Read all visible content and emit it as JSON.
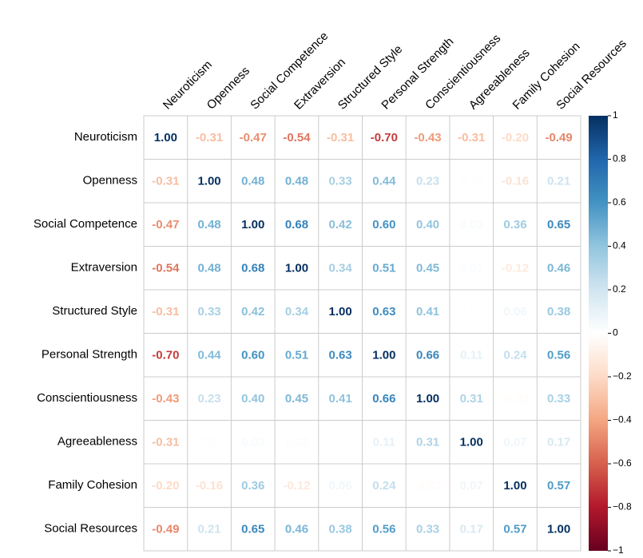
{
  "chart_data": {
    "type": "heatmap",
    "rows": [
      "Neuroticism",
      "Openness",
      "Social Competence",
      "Extraversion",
      "Structured Style",
      "Personal Strength",
      "Conscientiousness",
      "Agreeableness",
      "Family Cohesion",
      "Social Resources"
    ],
    "columns": [
      "Neuroticism",
      "Openness",
      "Social Competence",
      "Extraversion",
      "Structured Style",
      "Personal Strength",
      "Conscientiousness",
      "Agreeableness",
      "Family Cohesion",
      "Social Resources"
    ],
    "values": [
      [
        1.0,
        -0.31,
        -0.47,
        -0.54,
        -0.31,
        -0.7,
        -0.43,
        -0.31,
        -0.2,
        -0.49
      ],
      [
        -0.31,
        1.0,
        0.48,
        0.48,
        0.33,
        0.44,
        0.23,
        -0.01,
        -0.16,
        0.21
      ],
      [
        -0.47,
        0.48,
        1.0,
        0.68,
        0.42,
        0.6,
        0.4,
        0.03,
        0.36,
        0.65
      ],
      [
        -0.54,
        0.48,
        0.68,
        1.0,
        0.34,
        0.51,
        0.45,
        0.02,
        -0.12,
        0.46
      ],
      [
        -0.31,
        0.33,
        0.42,
        0.34,
        1.0,
        0.63,
        0.41,
        0.01,
        0.06,
        0.38
      ],
      [
        -0.7,
        0.44,
        0.6,
        0.51,
        0.63,
        1.0,
        0.66,
        0.11,
        0.24,
        0.56
      ],
      [
        -0.43,
        0.23,
        0.4,
        0.45,
        0.41,
        0.66,
        1.0,
        0.31,
        -0.02,
        0.33
      ],
      [
        -0.31,
        -0.01,
        0.03,
        0.02,
        0.01,
        0.11,
        0.31,
        1.0,
        0.07,
        0.17
      ],
      [
        -0.2,
        -0.16,
        0.36,
        -0.12,
        0.06,
        0.24,
        -0.02,
        0.07,
        1.0,
        0.57
      ],
      [
        -0.49,
        0.21,
        0.65,
        0.46,
        0.38,
        0.56,
        0.33,
        0.17,
        0.57,
        1.0
      ]
    ],
    "value_labels": [
      [
        "1.00",
        "-0.31",
        "-0.47",
        "-0.54",
        "-0.31",
        "-0.70",
        "-0.43",
        "-0.31",
        "-0.20",
        "-0.49"
      ],
      [
        "-0.31",
        "1.00",
        "0.48",
        "0.48",
        "0.33",
        "0.44",
        "0.23",
        "-0.01",
        "-0.16",
        "0.21"
      ],
      [
        "-0.47",
        "0.48",
        "1.00",
        "0.68",
        "0.42",
        "0.60",
        "0.40",
        "0.03",
        "0.36",
        "0.65"
      ],
      [
        "-0.54",
        "0.48",
        "0.68",
        "1.00",
        "0.34",
        "0.51",
        "0.45",
        "0.02",
        "-0.12",
        "0.46"
      ],
      [
        "-0.31",
        "0.33",
        "0.42",
        "0.34",
        "1.00",
        "0.63",
        "0.41",
        "0.01",
        "0.06",
        "0.38"
      ],
      [
        "-0.70",
        "0.44",
        "0.60",
        "0.51",
        "0.63",
        "1.00",
        "0.66",
        "0.11",
        "0.24",
        "0.56"
      ],
      [
        "-0.43",
        "0.23",
        "0.40",
        "0.45",
        "0.41",
        "0.66",
        "1.00",
        "0.31",
        "-0.02",
        "0.33"
      ],
      [
        "-0.31",
        "-0.01",
        "0.03",
        "0.02",
        "0.01",
        "0.11",
        "0.31",
        "1.00",
        "0.07",
        "0.17"
      ],
      [
        "-0.20",
        "-0.16",
        "0.36",
        "-0.12",
        "0.06",
        "0.24",
        "-0.02",
        "0.07",
        "1.00",
        "0.57"
      ],
      [
        "-0.49",
        "0.21",
        "0.65",
        "0.46",
        "0.38",
        "0.56",
        "0.33",
        "0.17",
        "0.57",
        "1.00"
      ]
    ],
    "colorscale": [
      "#67001F",
      "#B2182B",
      "#D6604D",
      "#F4A582",
      "#FDDBC7",
      "#FFFFFF",
      "#D1E5F0",
      "#92C5DE",
      "#4393C3",
      "#2166AC",
      "#053061"
    ],
    "zlim": [
      -1,
      1
    ],
    "zticks": [
      {
        "value": -1,
        "label": "−1"
      },
      {
        "value": -0.8,
        "label": "−0.8"
      },
      {
        "value": -0.6,
        "label": "−0.6"
      },
      {
        "value": -0.4,
        "label": "−0.4"
      },
      {
        "value": -0.2,
        "label": "−0.2"
      },
      0,
      0.2,
      0.4,
      0.6,
      0.8,
      1
    ]
  }
}
